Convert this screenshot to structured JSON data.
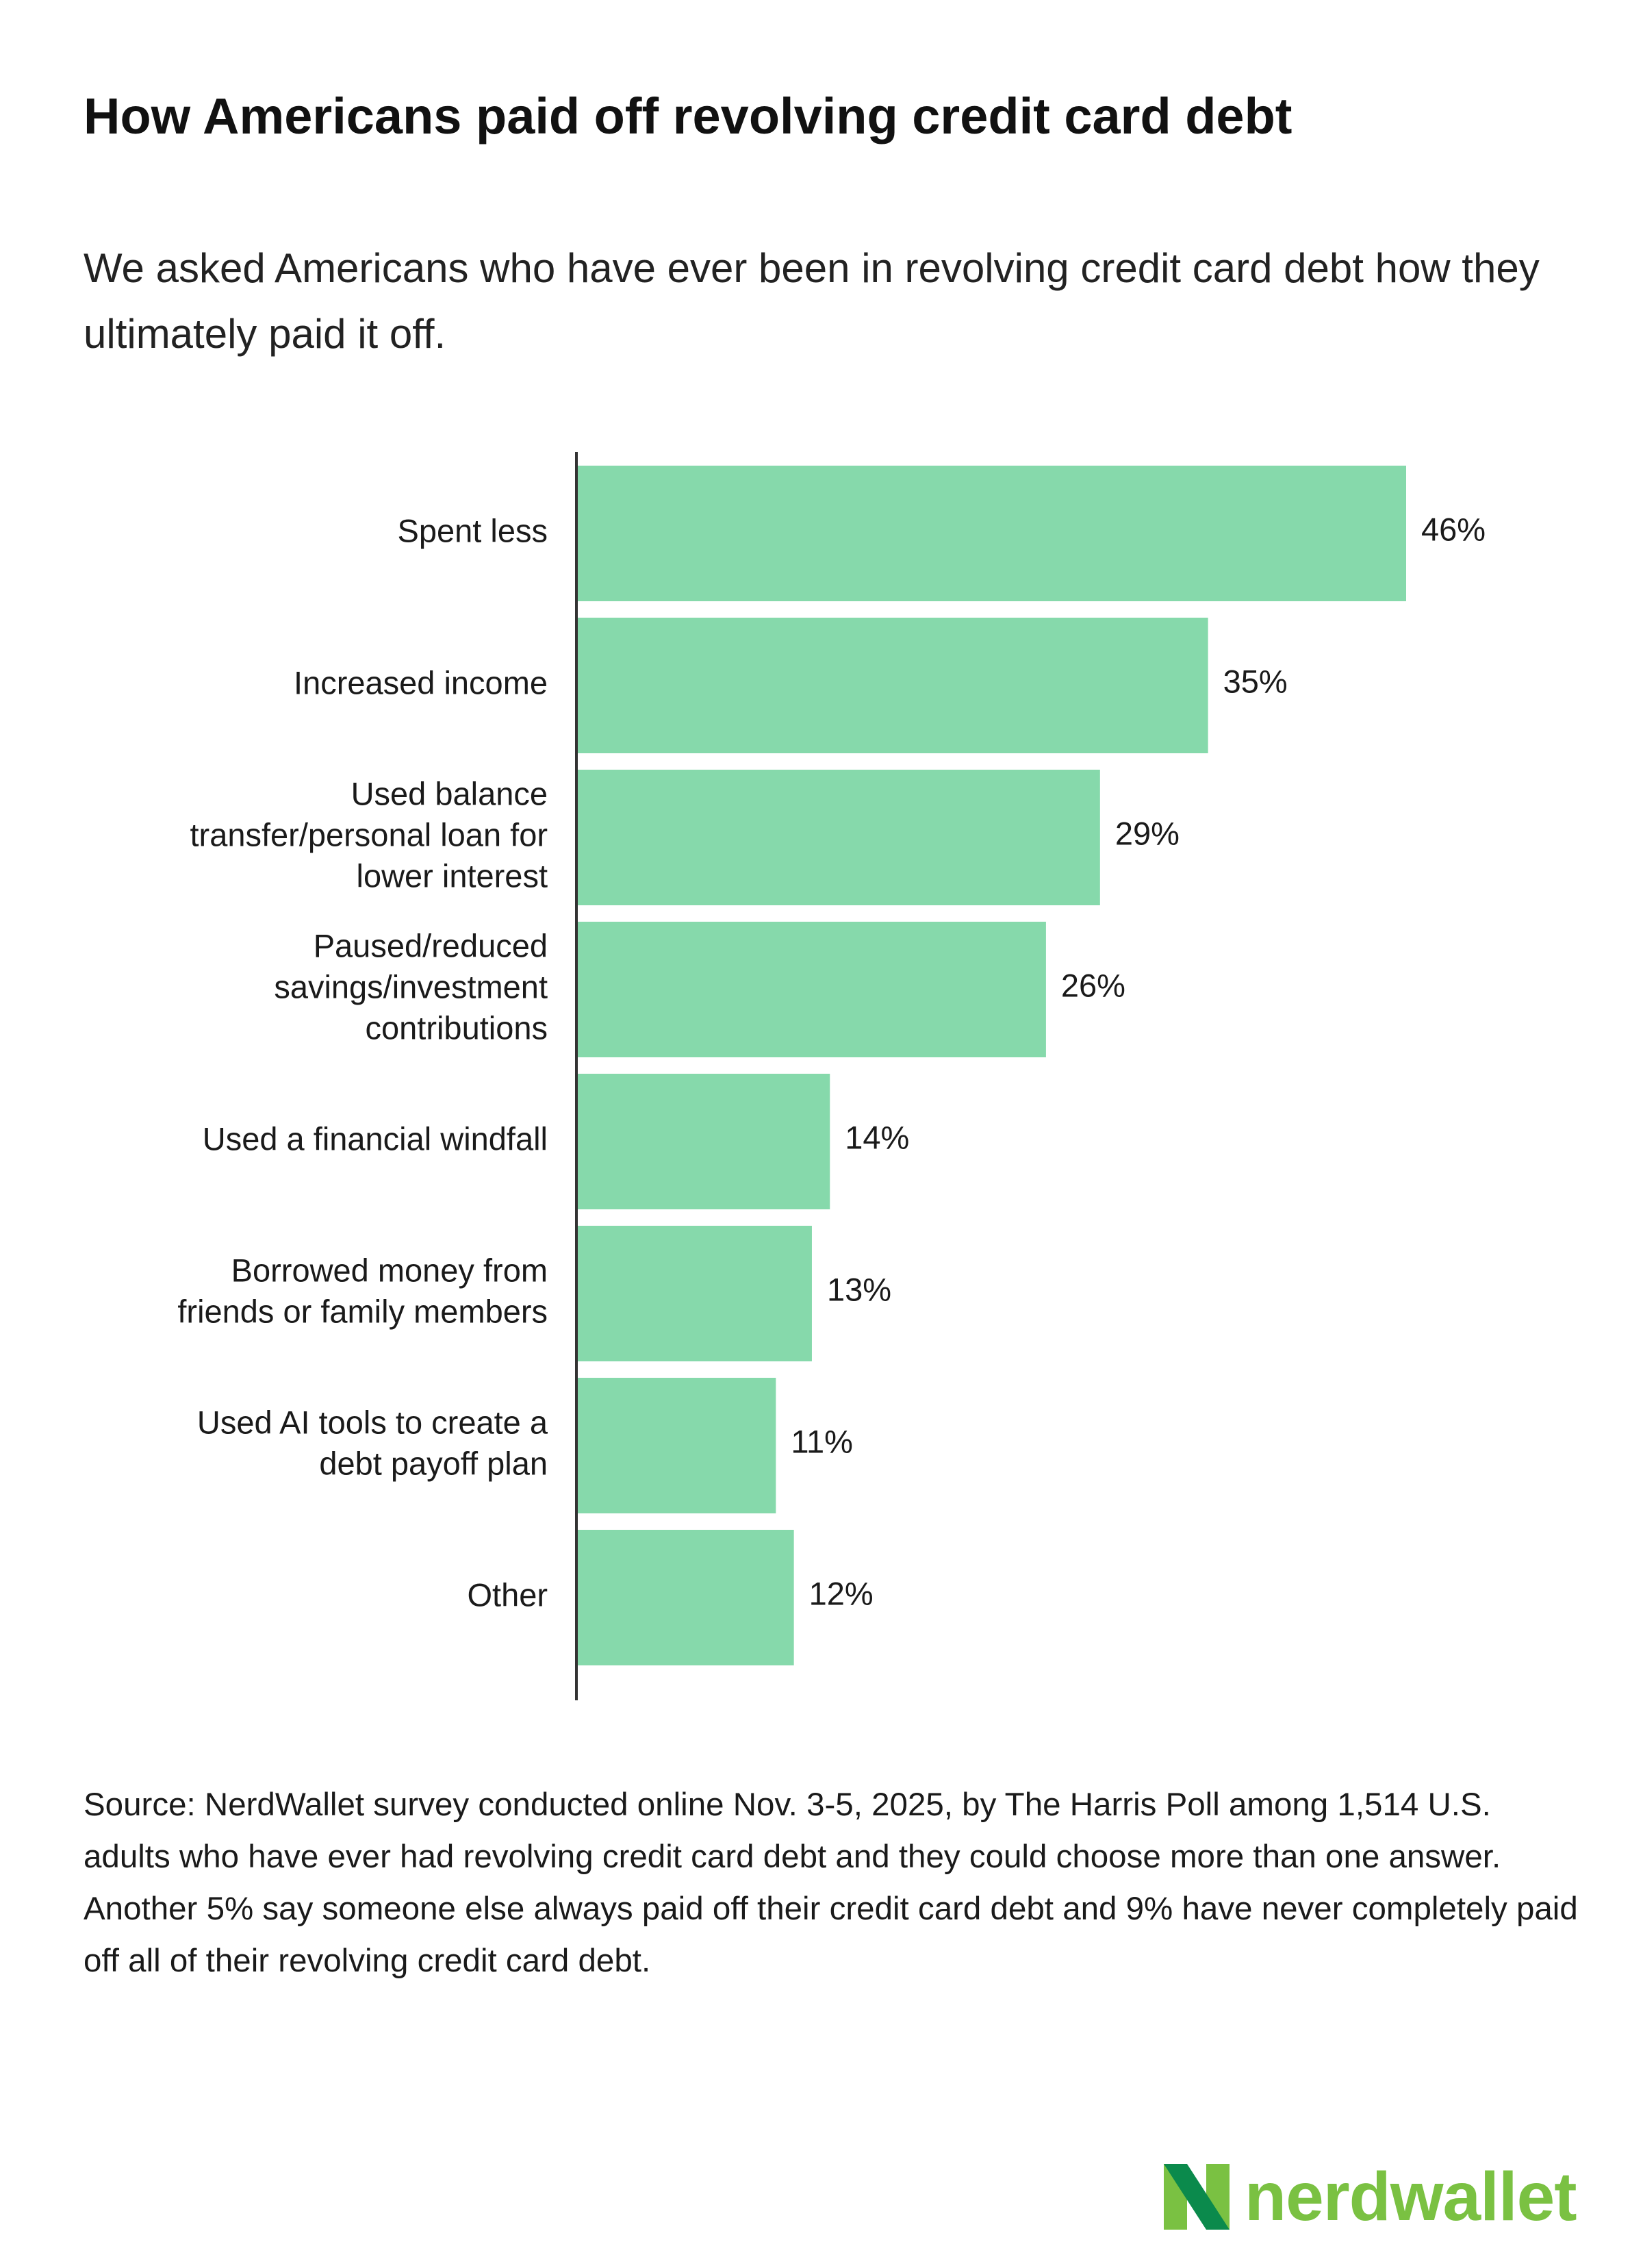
{
  "title": "How Americans paid off revolving credit card debt",
  "subtitle": "We asked Americans who have ever been in revolving credit card debt how they ultimately paid it off.",
  "chart_data": {
    "type": "bar",
    "orientation": "horizontal",
    "categories": [
      [
        "Spent less"
      ],
      [
        "Increased income"
      ],
      [
        "Used balance",
        "transfer/personal loan for",
        "lower interest"
      ],
      [
        "Paused/reduced",
        "savings/investment",
        "contributions"
      ],
      [
        "Used a financial windfall"
      ],
      [
        "Borrowed money from",
        "friends or family members"
      ],
      [
        "Used AI tools to create a",
        "debt payoff plan"
      ],
      [
        "Other"
      ]
    ],
    "values": [
      46,
      35,
      29,
      26,
      14,
      13,
      11,
      12
    ],
    "value_labels": [
      "46%",
      "35%",
      "29%",
      "26%",
      "14%",
      "13%",
      "11%",
      "12%"
    ],
    "unit": "%",
    "xlim": [
      0,
      46
    ],
    "bar_color": "#86d9ab",
    "axis_color": "#333333",
    "grid": false,
    "legend": "none"
  },
  "source": "Source: NerdWallet survey conducted online Nov. 3-5, 2025, by The Harris Poll among 1,514 U.S. adults who have ever had revolving credit card debt and they could choose more than one answer. Another 5% say someone else always paid off their credit card debt and 9% have never completely paid off all of their revolving credit card debt.",
  "logo": {
    "text": "nerdwallet",
    "icon": "nerdwallet-n-icon",
    "color": "#7ac142",
    "dark_color": "#0b8a4c"
  }
}
